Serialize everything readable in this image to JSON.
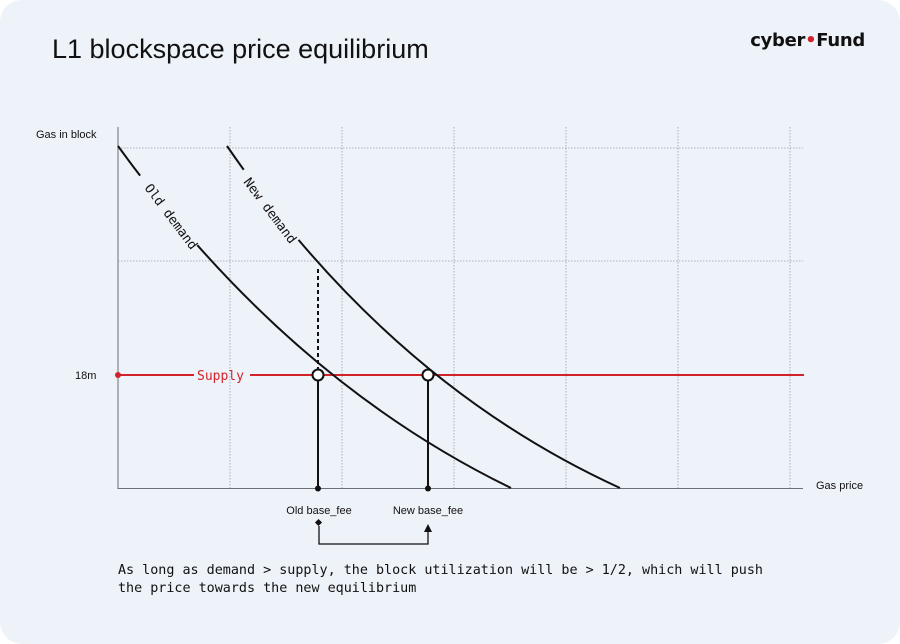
{
  "header": {
    "title": "L1 blockspace price equilibrium",
    "brand_part1": "cyber",
    "brand_dot": "•",
    "brand_part2": "Fund",
    "brand_dot_color": "#d3232a"
  },
  "chart_data": {
    "type": "line",
    "title": "L1 blockspace price equilibrium",
    "xlabel": "Gas price",
    "ylabel": "Gas in block",
    "ytick_label": "18m",
    "grid": true,
    "series": [
      {
        "name": "Old demand",
        "color": "#111111"
      },
      {
        "name": "New demand",
        "color": "#111111"
      },
      {
        "name": "Supply",
        "color": "#d3232a"
      }
    ],
    "annotations": {
      "old_fee_label": "Old base_fee",
      "new_fee_label": "New base_fee"
    }
  },
  "caption": "As long as demand > supply, the block utilization will be > 1/2, which will push\nthe price towards the new equilibrium"
}
